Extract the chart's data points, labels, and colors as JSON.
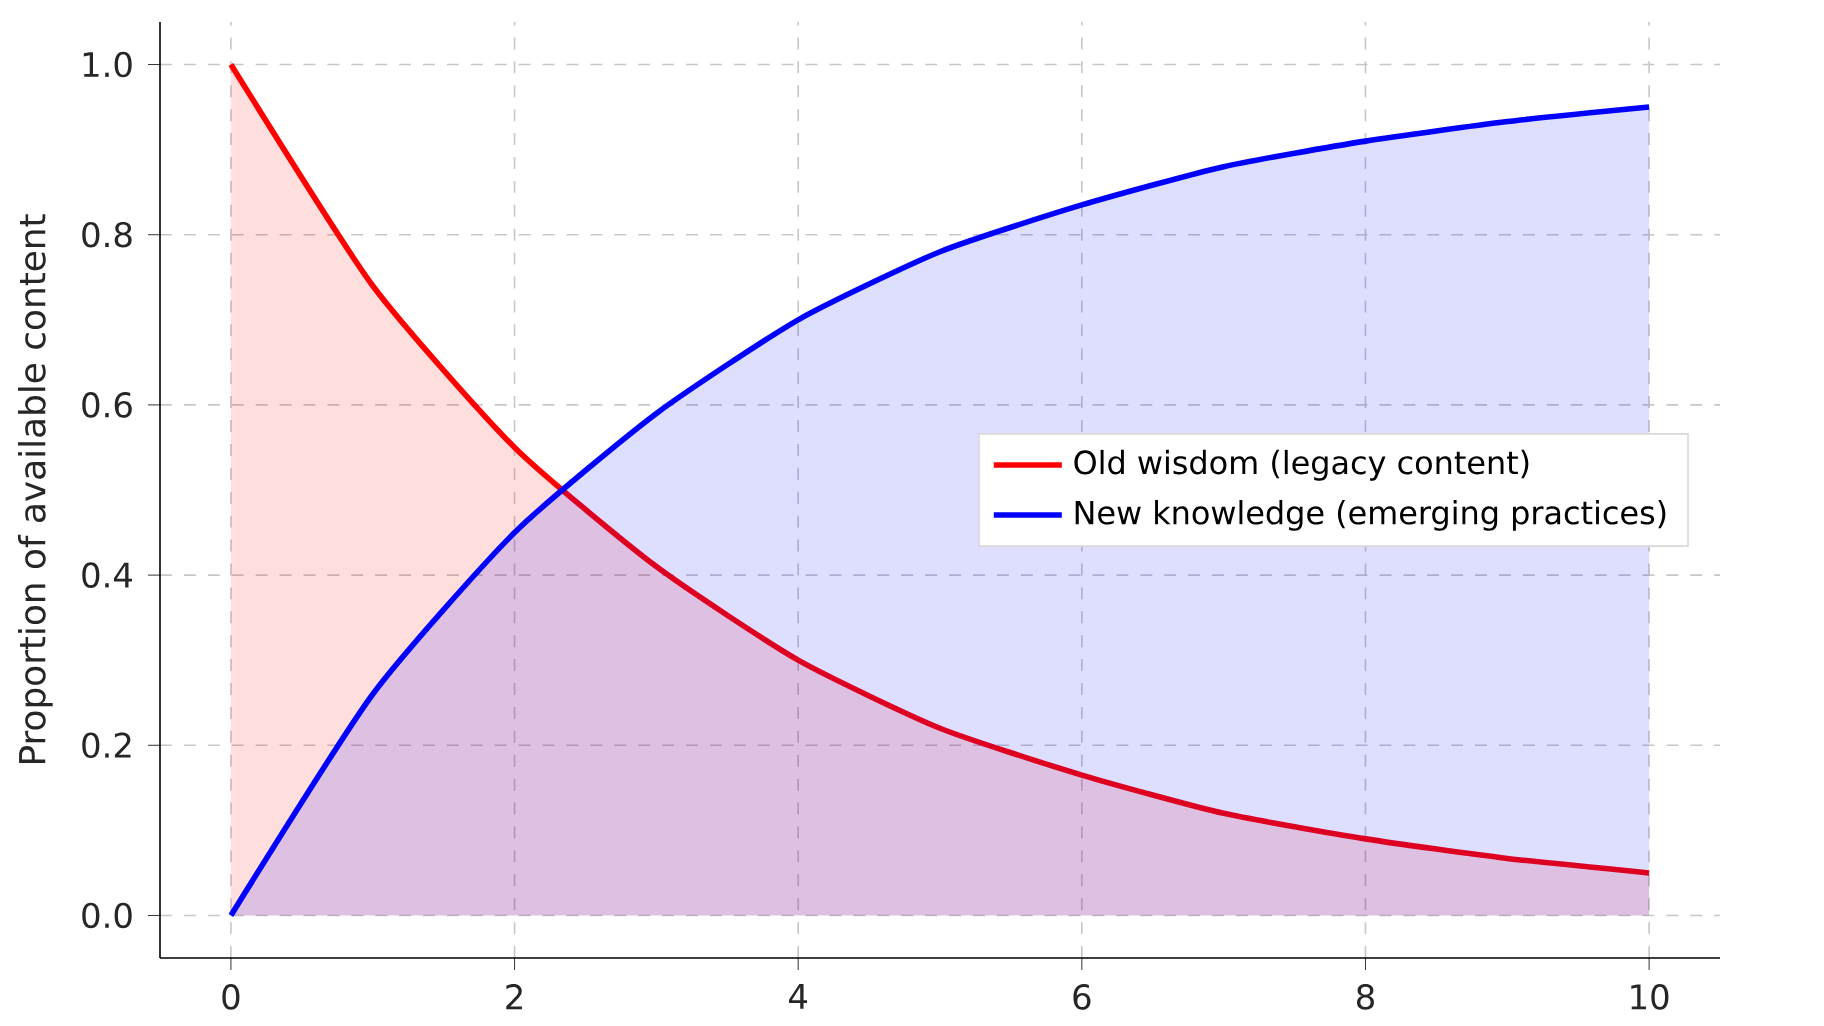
{
  "chart_data": {
    "type": "area",
    "ylabel": "Proportion of available content",
    "x": [
      0,
      1,
      2,
      3,
      4,
      5,
      6,
      7,
      8,
      9,
      10
    ],
    "series": [
      {
        "name": "Old wisdom (legacy content)",
        "color": "#ff0000",
        "values": [
          1.0,
          0.74,
          0.55,
          0.41,
          0.3,
          0.22,
          0.165,
          0.12,
          0.09,
          0.067,
          0.05
        ]
      },
      {
        "name": "New knowledge (emerging practices)",
        "color": "#0000ff",
        "values": [
          0.0,
          0.26,
          0.45,
          0.59,
          0.7,
          0.78,
          0.835,
          0.88,
          0.91,
          0.933,
          0.95
        ]
      }
    ],
    "xlim": [
      -0.5,
      10.5
    ],
    "ylim": [
      -0.05,
      1.05
    ],
    "xticks": [
      0,
      2,
      4,
      6,
      8,
      10
    ],
    "yticks": [
      {
        "value": 0,
        "label": "0.0"
      },
      {
        "value": 0.2,
        "label": "0.2"
      },
      {
        "value": 0.4,
        "label": "0.4"
      },
      {
        "value": 0.6,
        "label": "0.6"
      },
      {
        "value": 0.8,
        "label": "0.8"
      },
      {
        "value": 1,
        "label": "1.0"
      }
    ],
    "grid": true,
    "legend": "right",
    "marker": "none",
    "line_style": "solid"
  }
}
